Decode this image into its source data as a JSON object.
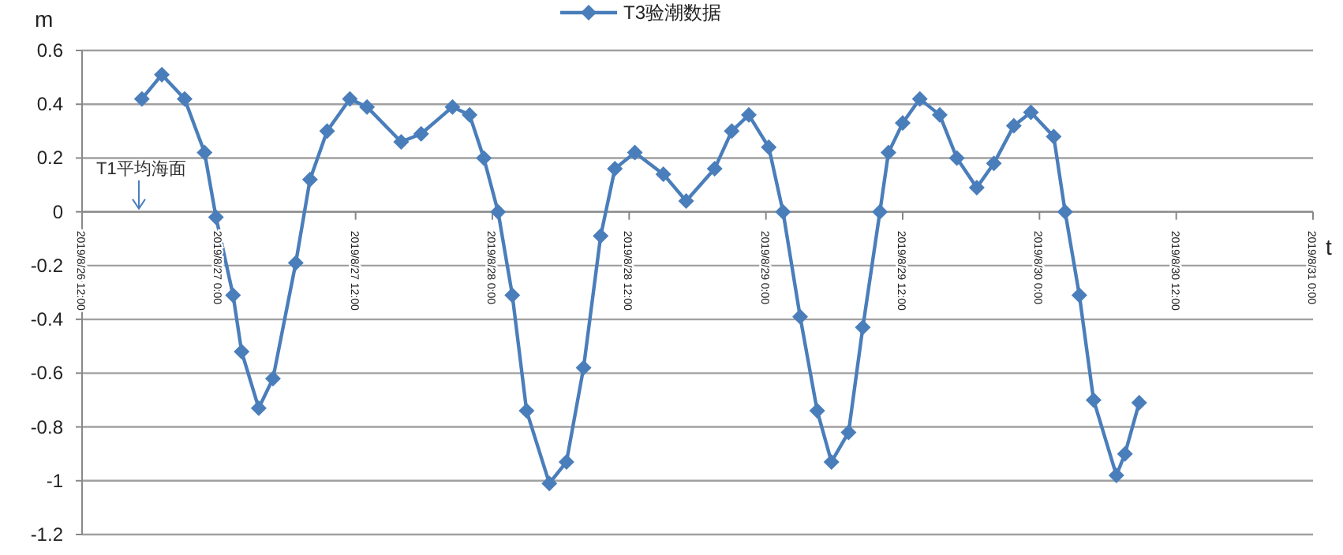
{
  "chart_data": {
    "type": "line",
    "xlabel": "t",
    "ylabel": "m",
    "legend": "top",
    "grid": "y",
    "marker": "diamond",
    "line_style": "solid",
    "ylim": [
      -1.2,
      0.6
    ],
    "yticks": [
      -1.2,
      -1,
      -0.8,
      -0.6,
      -0.4,
      -0.2,
      0,
      0.2,
      0.4,
      0.6
    ],
    "xlim": [
      "2019-08-26T12:00",
      "2019-08-31T00:00"
    ],
    "xticks": [
      {
        "value": "2019-08-26T12:00",
        "label": "2019/8/26 12:00"
      },
      {
        "value": "2019-08-27T00:00",
        "label": "2019/8/27 0:00"
      },
      {
        "value": "2019-08-27T12:00",
        "label": "2019/8/27 12:00"
      },
      {
        "value": "2019-08-28T00:00",
        "label": "2019/8/28 0:00"
      },
      {
        "value": "2019-08-28T12:00",
        "label": "2019/8/28 12:00"
      },
      {
        "value": "2019-08-29T00:00",
        "label": "2019/8/29 0:00"
      },
      {
        "value": "2019-08-29T12:00",
        "label": "2019/8/29 12:00"
      },
      {
        "value": "2019-08-30T00:00",
        "label": "2019/8/30 0:00"
      },
      {
        "value": "2019-08-30T12:00",
        "label": "2019/8/30 12:00"
      },
      {
        "value": "2019-08-31T00:00",
        "label": "2019/8/31 0:00"
      }
    ],
    "annotations": [
      "T1平均海面"
    ],
    "x": [
      "2019-08-26T17:15",
      "2019-08-26T19:00",
      "2019-08-26T21:00",
      "2019-08-26T22:45",
      "2019-08-26T23:45",
      "2019-08-27T01:15",
      "2019-08-27T02:00",
      "2019-08-27T03:30",
      "2019-08-27T04:45",
      "2019-08-27T06:45",
      "2019-08-27T08:00",
      "2019-08-27T09:30",
      "2019-08-27T11:30",
      "2019-08-27T13:00",
      "2019-08-27T16:00",
      "2019-08-27T17:45",
      "2019-08-27T20:30",
      "2019-08-27T22:00",
      "2019-08-27T23:15",
      "2019-08-28T00:30",
      "2019-08-28T01:45",
      "2019-08-28T03:00",
      "2019-08-28T05:00",
      "2019-08-28T06:30",
      "2019-08-28T08:00",
      "2019-08-28T09:30",
      "2019-08-28T10:45",
      "2019-08-28T12:30",
      "2019-08-28T15:00",
      "2019-08-28T17:00",
      "2019-08-28T19:30",
      "2019-08-28T21:00",
      "2019-08-28T22:30",
      "2019-08-29T00:15",
      "2019-08-29T01:30",
      "2019-08-29T03:00",
      "2019-08-29T04:30",
      "2019-08-29T05:45",
      "2019-08-29T07:15",
      "2019-08-29T08:30",
      "2019-08-29T10:00",
      "2019-08-29T10:45",
      "2019-08-29T12:00",
      "2019-08-29T13:30",
      "2019-08-29T15:15",
      "2019-08-29T16:45",
      "2019-08-29T18:30",
      "2019-08-29T20:00",
      "2019-08-29T21:45",
      "2019-08-29T23:15",
      "2019-08-30T01:15",
      "2019-08-30T02:15",
      "2019-08-30T03:30",
      "2019-08-30T04:45",
      "2019-08-30T06:45",
      "2019-08-30T07:30",
      "2019-08-30T08:45"
    ],
    "series": [
      {
        "name": "T3验潮数据",
        "color": "#4a7ebb",
        "values": [
          0.42,
          0.51,
          0.42,
          0.22,
          -0.02,
          -0.31,
          -0.52,
          -0.73,
          -0.62,
          -0.19,
          0.12,
          0.3,
          0.42,
          0.39,
          0.26,
          0.29,
          0.39,
          0.36,
          0.2,
          0.0,
          -0.31,
          -0.74,
          -1.01,
          -0.93,
          -0.58,
          -0.09,
          0.16,
          0.22,
          0.14,
          0.04,
          0.16,
          0.3,
          0.36,
          0.24,
          0.0,
          -0.39,
          -0.74,
          -0.93,
          -0.82,
          -0.43,
          0.0,
          0.22,
          0.33,
          0.42,
          0.36,
          0.2,
          0.09,
          0.18,
          0.32,
          0.37,
          0.28,
          0.0,
          -0.31,
          -0.7,
          -0.98,
          -0.9,
          -0.71
        ]
      }
    ]
  }
}
